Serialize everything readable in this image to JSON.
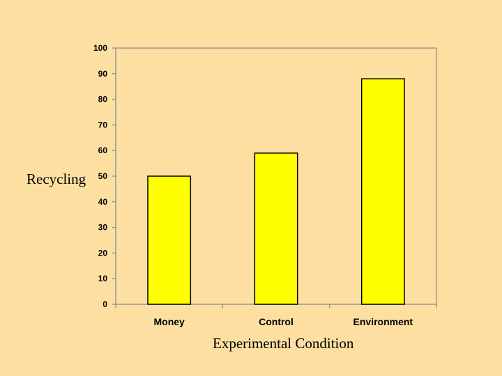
{
  "chart_data": {
    "type": "bar",
    "categories": [
      "Money",
      "Control",
      "Environment"
    ],
    "values": [
      50,
      59,
      88
    ],
    "xlabel": "Experimental Condition",
    "ylabel": "Recycling",
    "ylim": [
      0,
      100
    ],
    "yticks": [
      0,
      10,
      20,
      30,
      40,
      50,
      60,
      70,
      80,
      90,
      100
    ],
    "grid": false,
    "legend": false,
    "bar_color": "#FFFF00",
    "bar_edge_color": "#000000",
    "background_color": "#FDDFA2"
  }
}
